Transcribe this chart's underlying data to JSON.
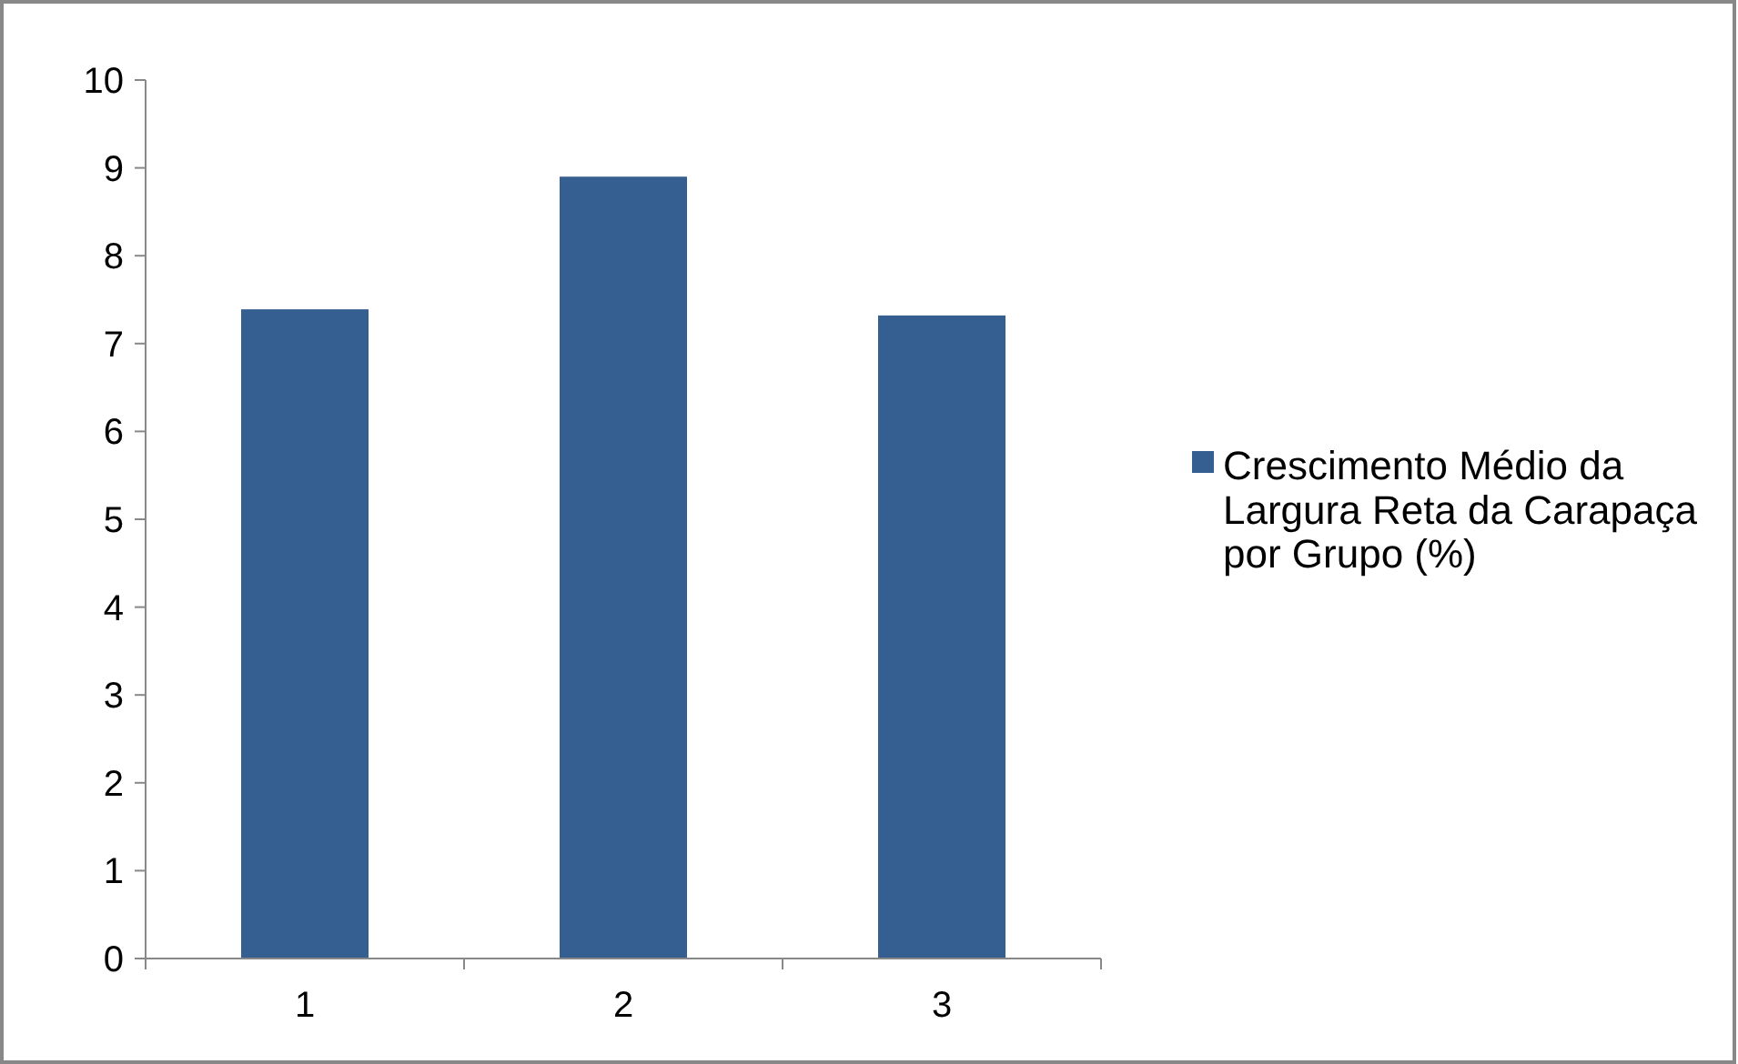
{
  "chart_data": {
    "type": "bar",
    "categories": [
      "1",
      "2",
      "3"
    ],
    "series": [
      {
        "name": "Crescimento Médio da Largura Reta da Carapaça por Grupo (%)",
        "color": "#365f91",
        "values": [
          7.39,
          8.9,
          7.32
        ]
      }
    ],
    "ylim": [
      0,
      10
    ],
    "yticks": [
      0,
      1,
      2,
      3,
      4,
      5,
      6,
      7,
      8,
      9,
      10
    ],
    "grid": false,
    "legend": "right"
  }
}
